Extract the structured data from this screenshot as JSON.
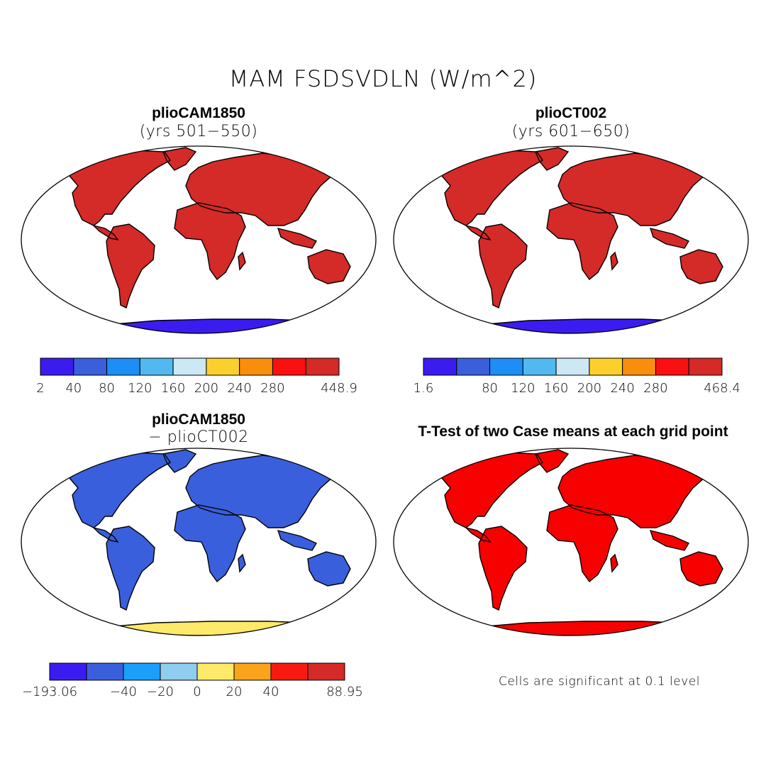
{
  "figure": {
    "title": "MAM FSDSVDLN (W/m^2)",
    "note": "Cells are significant at 0.1 level"
  },
  "panels": [
    {
      "title": "plioCAM1850",
      "subtitle": "(yrs 501−550)",
      "colorbar": {
        "colors": [
          "#3b1cf0",
          "#3a5fdc",
          "#1c8ef6",
          "#52b9f0",
          "#cce8f4",
          "#fcd02c",
          "#f98e0c",
          "#fa1010",
          "#d42a28"
        ],
        "labels": [
          "2",
          "40",
          "80",
          "120",
          "160",
          "200",
          "240",
          "280",
          "448.9"
        ]
      }
    },
    {
      "title": "plioCT002",
      "subtitle": "(yrs 601−650)",
      "colorbar": {
        "colors": [
          "#3b1cf0",
          "#3a5fdc",
          "#1c8ef6",
          "#52b9f0",
          "#cce8f4",
          "#fcd02c",
          "#f98e0c",
          "#fa1010",
          "#d42a28"
        ],
        "labels": [
          "1.6",
          "80",
          "120",
          "160",
          "200",
          "240",
          "280",
          "468.4"
        ]
      }
    },
    {
      "title": "plioCAM1850",
      "subtitle": "− plioCT002",
      "colorbar": {
        "colors": [
          "#3b1cf0",
          "#3a5fdc",
          "#1aa0fa",
          "#90ceef",
          "#fde96a",
          "#f9a41a",
          "#f81a10",
          "#d42a28"
        ],
        "labels": [
          "−193.06",
          "−40",
          "−20",
          "0",
          "20",
          "40",
          "88.95"
        ]
      }
    },
    {
      "title": "T-Test of two Case means at each grid point"
    }
  ]
}
